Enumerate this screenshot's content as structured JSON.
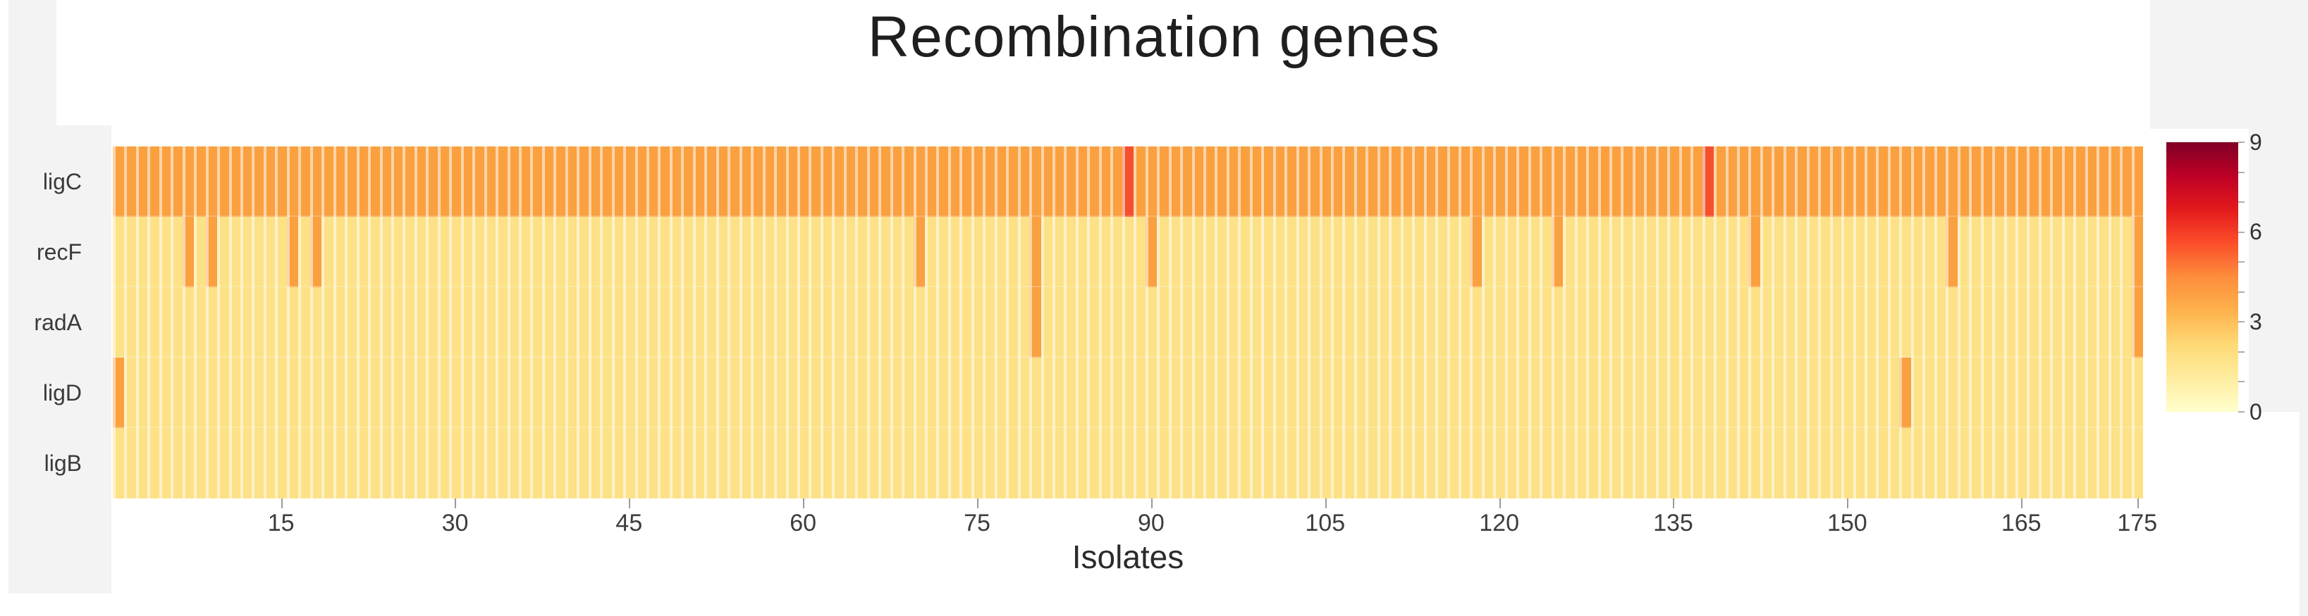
{
  "title": "Recombination genes",
  "xlabel": "Isolates",
  "colors": {
    "panel_bg": "#f3f3f3",
    "title_text": "#1f1f1f",
    "label_text": "#3a3a3a",
    "tick_mark": "#9a9a9a"
  },
  "chart_data": {
    "type": "heatmap",
    "title": "Recombination genes",
    "xlabel": "Isolates",
    "ylabel": "",
    "rows": [
      "ligC",
      "recF",
      "radA",
      "ligD",
      "ligB"
    ],
    "n_columns": 175,
    "x_ticks": [
      15,
      30,
      45,
      60,
      75,
      90,
      105,
      120,
      135,
      150,
      165,
      175
    ],
    "row_base_values": {
      "ligC": 3,
      "recF": 1,
      "radA": 1,
      "ligD": 1,
      "ligB": 1
    },
    "cells_overrides": [
      {
        "row": "ligD",
        "col": 1,
        "value": 3
      },
      {
        "row": "recF",
        "col": 7,
        "value": 3
      },
      {
        "row": "recF",
        "col": 9,
        "value": 3
      },
      {
        "row": "recF",
        "col": 16,
        "value": 3
      },
      {
        "row": "recF",
        "col": 18,
        "value": 3
      },
      {
        "row": "recF",
        "col": 70,
        "value": 3
      },
      {
        "row": "recF",
        "col": 80,
        "value": 3
      },
      {
        "row": "radA",
        "col": 80,
        "value": 3
      },
      {
        "row": "ligC",
        "col": 88,
        "value": 6
      },
      {
        "row": "recF",
        "col": 90,
        "value": 3
      },
      {
        "row": "recF",
        "col": 118,
        "value": 3
      },
      {
        "row": "recF",
        "col": 125,
        "value": 3
      },
      {
        "row": "ligC",
        "col": 138,
        "value": 6
      },
      {
        "row": "recF",
        "col": 142,
        "value": 3
      },
      {
        "row": "ligD",
        "col": 155,
        "value": 3
      },
      {
        "row": "recF",
        "col": 159,
        "value": 3
      },
      {
        "row": "recF",
        "col": 175,
        "value": 3
      },
      {
        "row": "radA",
        "col": 175,
        "value": 3
      }
    ],
    "value_colors": {
      "1": "#fce186",
      "3": "#faa03f",
      "6": "#f4502c"
    },
    "colorbar": {
      "min": 0,
      "max": 9,
      "major_ticks": [
        0,
        3,
        6,
        9
      ],
      "minor_tick_step": 1,
      "colormap": "YlOrRd",
      "gradient_stops": [
        "#ffffcc",
        "#ffeda0",
        "#fed976",
        "#feb24c",
        "#fd8d3c",
        "#fc4e2a",
        "#e31a1c",
        "#bd0026",
        "#800026"
      ]
    },
    "grid": false,
    "legend_position": "right"
  }
}
